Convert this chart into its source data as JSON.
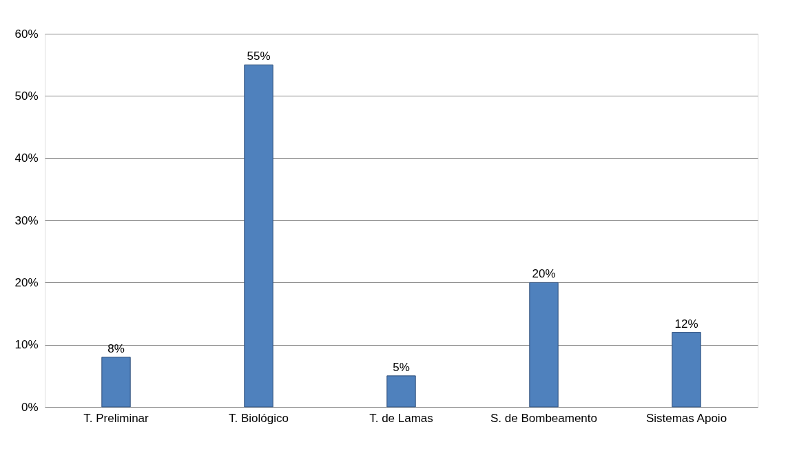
{
  "chart_data": {
    "type": "bar",
    "categories": [
      "T. Preliminar",
      "T. Biológico",
      "T. de Lamas",
      "S. de Bombeamento",
      "Sistemas Apoio"
    ],
    "values": [
      8,
      55,
      5,
      20,
      12
    ],
    "value_labels": [
      "8%",
      "55%",
      "5%",
      "20%",
      "12%"
    ],
    "color": "#4f81bd",
    "ylim": [
      0,
      60
    ],
    "yticks": [
      {
        "value": 0,
        "label": "0%"
      },
      {
        "value": 10,
        "label": "10%"
      },
      {
        "value": 20,
        "label": "20%"
      },
      {
        "value": 30,
        "label": "30%"
      },
      {
        "value": 40,
        "label": "40%"
      },
      {
        "value": 50,
        "label": "50%"
      },
      {
        "value": 60,
        "label": "60%"
      }
    ],
    "grid": "y"
  }
}
